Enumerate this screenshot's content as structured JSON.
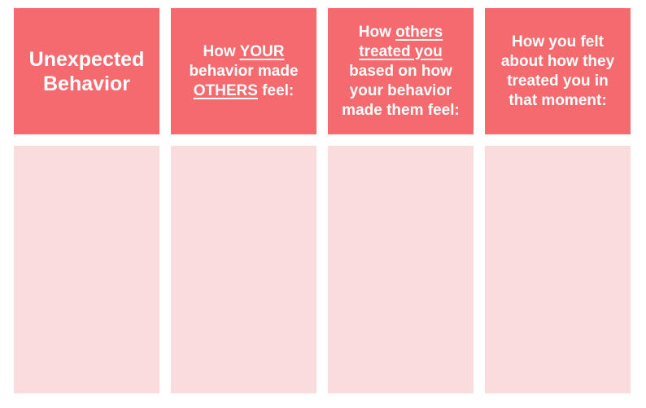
{
  "colors": {
    "header_bg": "#F46A6E",
    "body_bg": "#FADBDE",
    "header_text": "#FFFFFF",
    "page_bg": "#FFFFFF"
  },
  "columns": [
    {
      "name": "unexpected-behavior",
      "header_text": "Unexpected Behavior",
      "header_lines": [
        [
          {
            "text": "Unexpected",
            "underline": false
          }
        ],
        [
          {
            "text": "Behavior",
            "underline": false
          }
        ]
      ],
      "body_text": ""
    },
    {
      "name": "how-your-behavior-made-others-feel",
      "header_text": "How YOUR behavior made OTHERS feel:",
      "header_lines": [
        [
          {
            "text": "How ",
            "underline": false
          },
          {
            "text": "YOUR",
            "underline": true
          }
        ],
        [
          {
            "text": "behavior made",
            "underline": false
          }
        ],
        [
          {
            "text": "OTHERS",
            "underline": true
          },
          {
            "text": " feel:",
            "underline": false
          }
        ]
      ],
      "body_text": ""
    },
    {
      "name": "how-others-treated-you",
      "header_text": "How others treated you based on how your behavior made them feel:",
      "header_lines": [
        [
          {
            "text": "How ",
            "underline": false
          },
          {
            "text": "others",
            "underline": true
          }
        ],
        [
          {
            "text": "treated you",
            "underline": true
          }
        ],
        [
          {
            "text": "based on how",
            "underline": false
          }
        ],
        [
          {
            "text": "your behavior",
            "underline": false
          }
        ],
        [
          {
            "text": "made them feel:",
            "underline": false
          }
        ]
      ],
      "body_text": ""
    },
    {
      "name": "how-you-felt",
      "header_text": "How you felt about how they treated you in that moment:",
      "header_lines": [
        [
          {
            "text": "How you felt",
            "underline": false
          }
        ],
        [
          {
            "text": "about how they",
            "underline": false
          }
        ],
        [
          {
            "text": "treated you in",
            "underline": false
          }
        ],
        [
          {
            "text": "that moment:",
            "underline": false
          }
        ]
      ],
      "body_text": ""
    }
  ]
}
